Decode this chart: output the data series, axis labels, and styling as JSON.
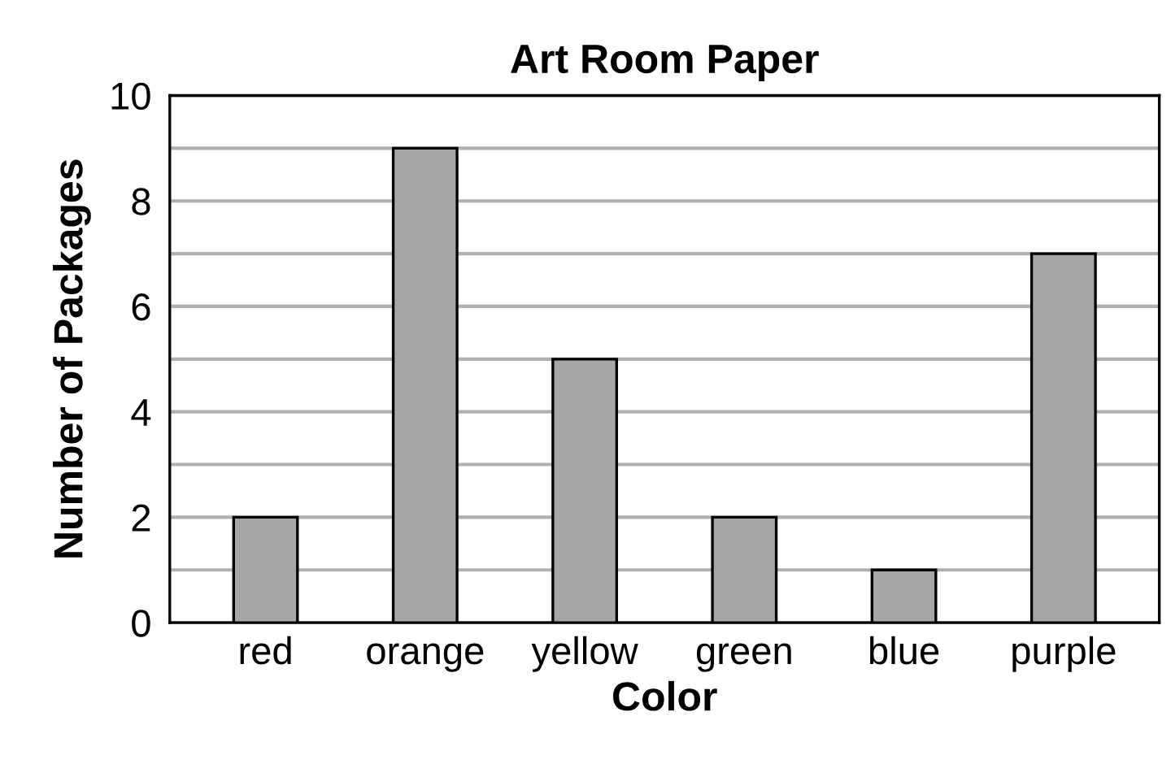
{
  "chart_data": {
    "type": "bar",
    "title": "Art Room Paper",
    "xlabel": "Color",
    "ylabel": "Number of Packages",
    "categories": [
      "red",
      "orange",
      "yellow",
      "green",
      "blue",
      "purple"
    ],
    "values": [
      2,
      9,
      5,
      2,
      1,
      7
    ],
    "color": "#a6a6a6",
    "ylim": [
      0,
      10
    ],
    "yticks": [
      0,
      {
        "value": 1,
        "label": null
      },
      2,
      {
        "value": 3,
        "label": null
      },
      4,
      {
        "value": 5,
        "label": null
      },
      6,
      {
        "value": 7,
        "label": null
      },
      8,
      {
        "value": 9,
        "label": null
      },
      10
    ],
    "grid": "y"
  }
}
